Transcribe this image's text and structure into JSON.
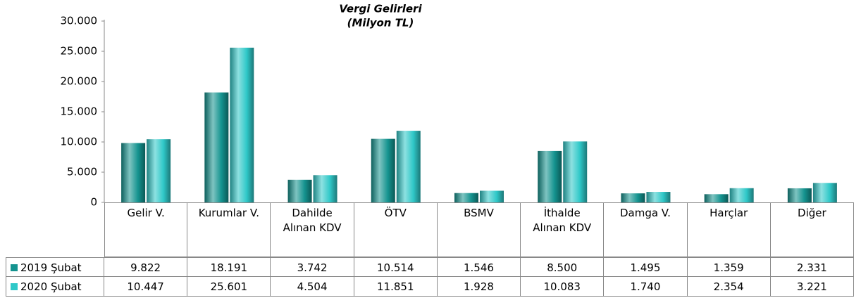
{
  "chart_data": {
    "type": "bar",
    "title": "Vergi Gelirleri",
    "subtitle": "(Milyon TL)",
    "categories": [
      "Gelir V.",
      "Kurumlar V.",
      "Dahilde Alınan KDV",
      "ÖTV",
      "BSMV",
      "İthalde Alınan KDV",
      "Damga V.",
      "Harçlar",
      "Diğer"
    ],
    "series": [
      {
        "name": "2019 Şubat",
        "color": "#14938f",
        "values": [
          9822,
          18191,
          3742,
          10514,
          1546,
          8500,
          1495,
          1359,
          2331
        ],
        "value_labels": [
          "9.822",
          "18.191",
          "3.742",
          "10.514",
          "1.546",
          "8.500",
          "1.495",
          "1.359",
          "2.331"
        ]
      },
      {
        "name": "2020 Şubat",
        "color": "#2fc8c8",
        "values": [
          10447,
          25601,
          4504,
          11851,
          1928,
          10083,
          1740,
          2354,
          3221
        ],
        "value_labels": [
          "10.447",
          "25.601",
          "4.504",
          "11.851",
          "1.928",
          "10.083",
          "1.740",
          "2.354",
          "3.221"
        ]
      }
    ],
    "ylim": [
      0,
      30000
    ],
    "yticks": [
      0,
      {
        "value": 5000,
        "label": "5.000"
      },
      {
        "value": 10000,
        "label": "10.000"
      },
      {
        "value": 15000,
        "label": "15.000"
      },
      {
        "value": 20000,
        "label": "20.000"
      },
      {
        "value": 25000,
        "label": "25.000"
      },
      {
        "value": 30000,
        "label": "30.000"
      }
    ],
    "grid": false
  }
}
